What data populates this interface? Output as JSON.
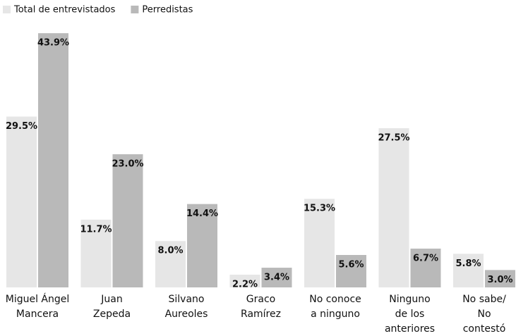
{
  "chart_data": {
    "type": "bar",
    "categories": [
      [
        "Miguel Ángel",
        "Mancera"
      ],
      [
        "Juan",
        "Zepeda"
      ],
      [
        "Silvano",
        "Aureoles"
      ],
      [
        "Graco",
        "Ramírez"
      ],
      [
        "No conoce",
        "a ninguno"
      ],
      [
        "Ninguno",
        "de los",
        "anteriores"
      ],
      [
        "No sabe/",
        "No",
        "contestó"
      ]
    ],
    "series": [
      {
        "name": "Total de entrevistados",
        "color": "#e6e6e6",
        "values": [
          29.5,
          11.7,
          8.0,
          2.2,
          15.3,
          27.5,
          5.8
        ],
        "value_labels": [
          "29.5%",
          "11.7%",
          "8.0%",
          "2.2%",
          "15.3%",
          "27.5%",
          "5.8%"
        ]
      },
      {
        "name": "Perredistas",
        "color": "#b9b9b9",
        "values": [
          43.9,
          23.0,
          14.4,
          3.4,
          5.6,
          6.7,
          3.0
        ],
        "value_labels": [
          "43.9%",
          "23.0%",
          "14.4%",
          "3.4%",
          "5.6%",
          "6.7%",
          "3.0%"
        ]
      }
    ],
    "legend": "top-left"
  }
}
